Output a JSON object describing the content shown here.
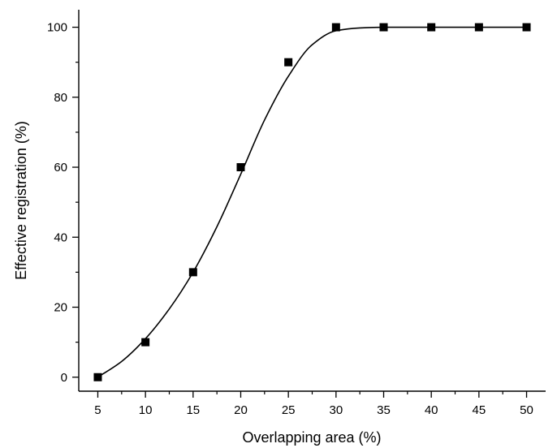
{
  "chart_data": {
    "type": "scatter",
    "xlabel": "Overlapping area (%)",
    "ylabel": "Effective registration (%)",
    "xlim": [
      3,
      52
    ],
    "ylim": [
      -4,
      105
    ],
    "xticks": [
      5,
      10,
      15,
      20,
      25,
      30,
      35,
      40,
      45,
      50
    ],
    "yticks": [
      0,
      20,
      40,
      60,
      80,
      100
    ],
    "grid": false,
    "legend": "none",
    "series": [
      {
        "marker": "filled-square",
        "color": "#000000",
        "x": [
          5,
          10,
          15,
          20,
          25,
          30,
          35,
          40,
          45,
          50
        ],
        "y": [
          0,
          10,
          30,
          60,
          90,
          100,
          100,
          100,
          100,
          100
        ]
      }
    ],
    "fit_curve": {
      "style": "smooth sigmoid fit line",
      "color": "#000000",
      "x": [
        5,
        7.5,
        10,
        12.5,
        15,
        17.5,
        20,
        22.5,
        25,
        27.5,
        30,
        32.5,
        35,
        40,
        45,
        50
      ],
      "y": [
        0,
        4.5,
        11,
        19.5,
        30,
        43,
        58,
        73.5,
        86,
        95,
        99,
        99.8,
        100,
        100,
        100,
        100
      ]
    }
  }
}
